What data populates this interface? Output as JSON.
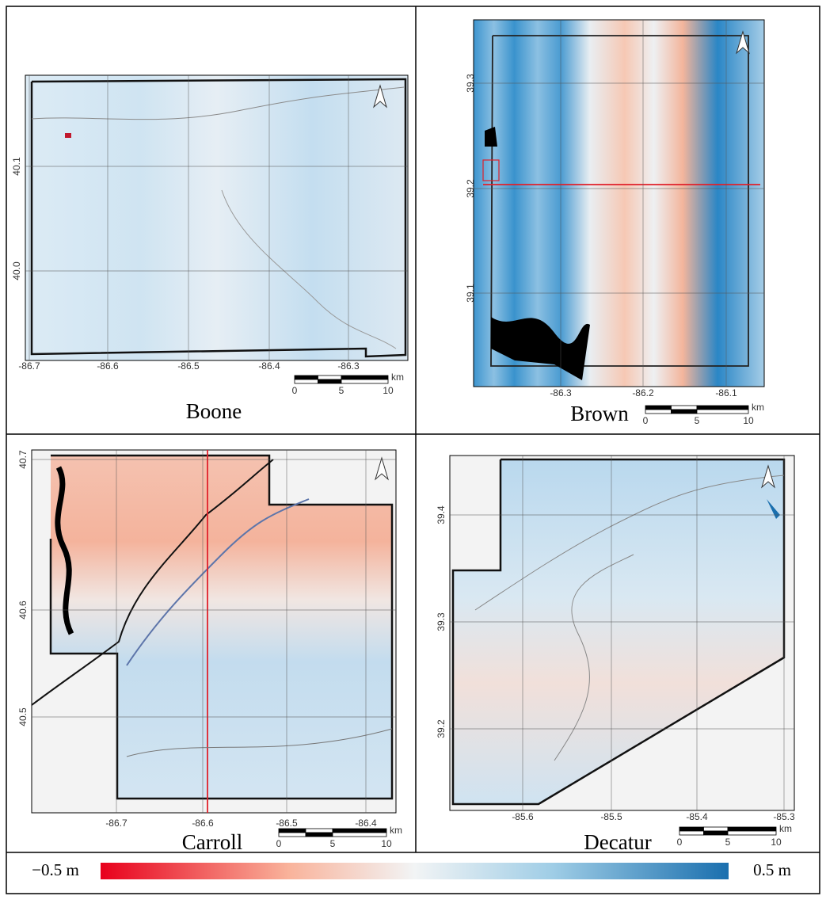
{
  "panels": [
    {
      "name": "Boone",
      "lat_ticks": [
        "40.1",
        "40.0"
      ],
      "lon_ticks": [
        "-86.7",
        "-86.6",
        "-86.5",
        "-86.4",
        "-86.3"
      ],
      "scale_labels": [
        "0",
        "5",
        "10"
      ],
      "scale_unit": "km"
    },
    {
      "name": "Brown",
      "lat_ticks": [
        "39.3",
        "39.2",
        "39.1"
      ],
      "lon_ticks": [
        "-86.3",
        "-86.2",
        "-86.1"
      ],
      "scale_labels": [
        "0",
        "5",
        "10"
      ],
      "scale_unit": "km"
    },
    {
      "name": "Carroll",
      "lat_ticks": [
        "40.7",
        "40.6",
        "40.5"
      ],
      "lon_ticks": [
        "-86.7",
        "-86.6",
        "-86.5",
        "-86.4"
      ],
      "scale_labels": [
        "0",
        "5",
        "10"
      ],
      "scale_unit": "km"
    },
    {
      "name": "Decatur",
      "lat_ticks": [
        "39.4",
        "39.3",
        "39.2"
      ],
      "lon_ticks": [
        "-85.6",
        "-85.5",
        "-85.4",
        "-85.3"
      ],
      "scale_labels": [
        "0",
        "5",
        "10"
      ],
      "scale_unit": "km"
    }
  ],
  "colorbar": {
    "min_label": "−0.5 m",
    "max_label": "0.5 m"
  }
}
